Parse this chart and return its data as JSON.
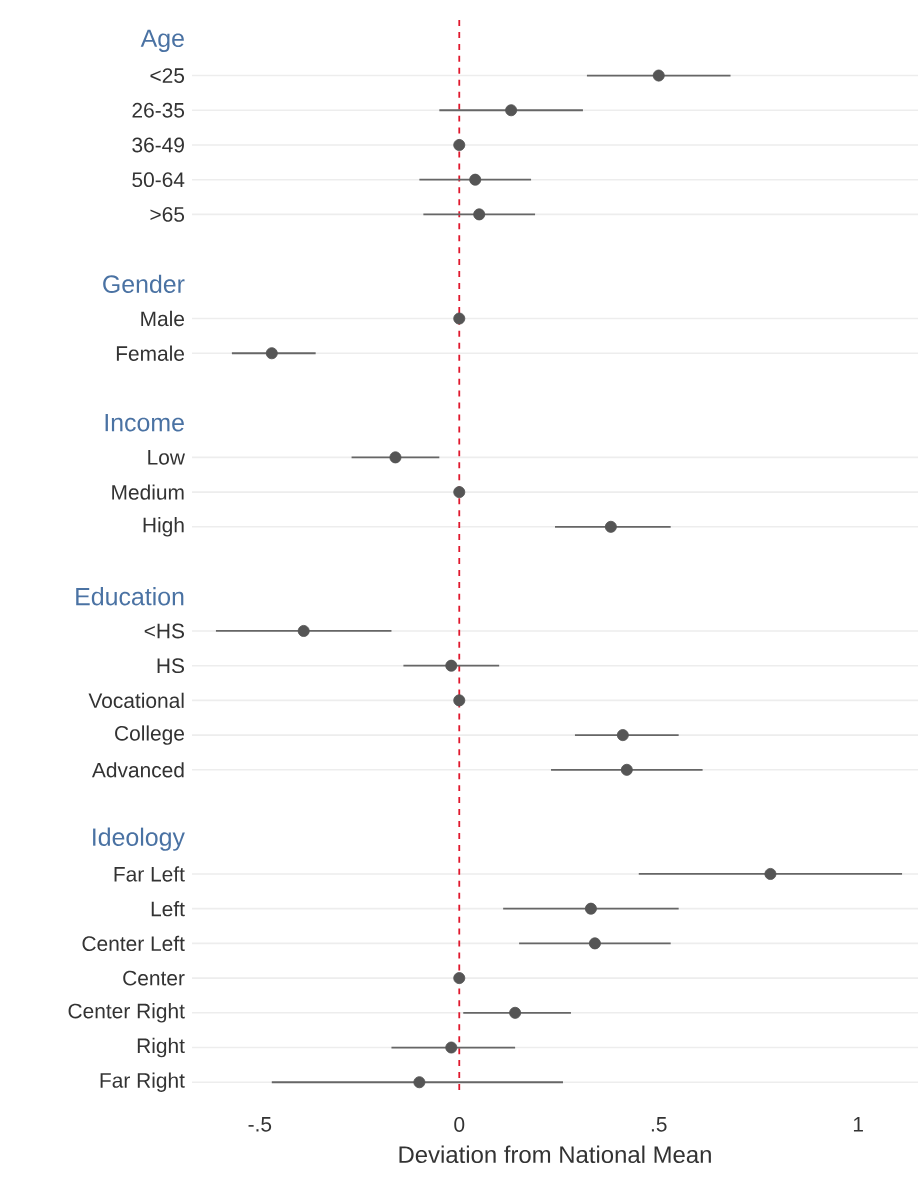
{
  "chart_data": {
    "type": "scatter",
    "orientation": "horizontal",
    "xlabel": "Deviation from National Mean",
    "categories": [
      "Age",
      "<25",
      "26-35",
      "36-49",
      "50-64",
      ">65",
      null,
      "Gender",
      "Male",
      "Female",
      null,
      "Income",
      "Low",
      "Medium",
      "High",
      null,
      "Education",
      "<HS",
      "HS",
      "Vocational",
      "College",
      "Advanced",
      null,
      "Ideology",
      "Far Left",
      "Left",
      "Center Left",
      "Center",
      "Center Right",
      "Right",
      "Far Right"
    ],
    "values": [
      null,
      0.5,
      0.13,
      0.0,
      0.04,
      0.05,
      null,
      null,
      0.0,
      -0.47,
      null,
      null,
      -0.16,
      0.0,
      0.38,
      null,
      null,
      -0.39,
      -0.02,
      0.0,
      0.41,
      0.42,
      null,
      null,
      0.78,
      0.33,
      0.34,
      0.0,
      0.14,
      -0.02,
      -0.1
    ],
    "errors": [
      null,
      [
        0.32,
        0.68
      ],
      [
        -0.05,
        0.31
      ],
      null,
      [
        -0.1,
        0.18
      ],
      [
        -0.09,
        0.19
      ],
      null,
      null,
      null,
      [
        -0.57,
        -0.36
      ],
      null,
      null,
      [
        -0.27,
        -0.05
      ],
      null,
      [
        0.24,
        0.53
      ],
      null,
      null,
      [
        -0.61,
        -0.17
      ],
      [
        -0.14,
        0.1
      ],
      null,
      [
        0.29,
        0.55
      ],
      [
        0.23,
        0.61
      ],
      null,
      null,
      [
        0.45,
        1.11
      ],
      [
        0.11,
        0.55
      ],
      [
        0.15,
        0.53
      ],
      null,
      [
        0.01,
        0.28
      ],
      [
        -0.17,
        0.14
      ],
      [
        -0.47,
        0.26
      ]
    ],
    "color": "#555555",
    "marker": "circle",
    "xlim": [
      -0.67,
      1.15
    ],
    "xticks": [
      {
        "value": -0.5,
        "label": "-.5"
      },
      {
        "value": 0,
        "label": "0"
      },
      {
        "value": 0.5,
        "label": ".5"
      },
      {
        "value": 1,
        "label": "1"
      }
    ],
    "grid": "y",
    "ref_lines": [
      {
        "axis": "x",
        "value": 0,
        "color": "#e0182d",
        "line_style": "dashed"
      }
    ]
  }
}
